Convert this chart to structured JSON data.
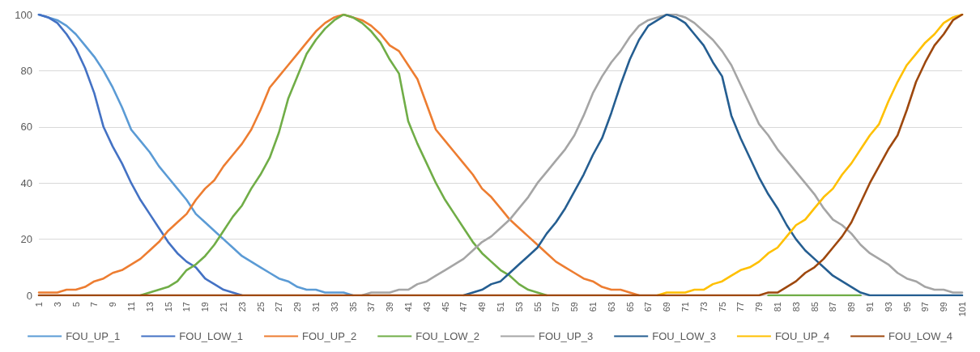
{
  "chart_data": {
    "type": "line",
    "categories": [
      "1",
      null,
      "3",
      null,
      "5",
      null,
      "7",
      null,
      "9",
      null,
      "11",
      null,
      "13",
      null,
      "15",
      null,
      "17",
      null,
      "19",
      null,
      "21",
      null,
      "23",
      null,
      "25",
      null,
      "27",
      null,
      "29",
      null,
      "31",
      null,
      "33",
      null,
      "35",
      null,
      "37",
      null,
      "39",
      null,
      "41",
      null,
      "43",
      null,
      "45",
      null,
      "47",
      null,
      "49",
      null,
      "51",
      null,
      "53",
      null,
      "55",
      null,
      "57",
      null,
      "59",
      null,
      "61",
      null,
      "63",
      null,
      "65",
      null,
      "67",
      null,
      "69",
      null,
      "71",
      null,
      "73",
      null,
      "75",
      null,
      "77",
      null,
      "79",
      null,
      "81",
      null,
      "83",
      null,
      "85",
      null,
      "87",
      null,
      "89",
      null,
      "91",
      null,
      "93",
      null,
      "95",
      null,
      "97",
      null,
      "99",
      null,
      "101"
    ],
    "series": [
      {
        "name": "FOU_UP_1",
        "color": "#5b9bd5",
        "values": [
          100,
          99,
          98,
          96,
          93,
          89,
          85,
          80,
          74,
          67,
          59,
          55,
          51,
          46,
          42,
          38,
          34,
          29,
          26,
          23,
          20,
          17,
          14,
          12,
          10,
          8,
          6,
          5,
          3,
          2,
          2,
          1,
          1,
          1,
          0,
          null,
          null,
          null,
          null,
          null,
          null,
          null,
          null,
          null,
          null,
          null,
          null,
          null,
          null,
          null,
          null,
          null,
          null,
          null,
          null,
          null,
          null,
          null,
          null,
          null,
          null,
          null,
          null,
          null,
          null,
          null,
          null,
          null,
          null,
          null,
          null,
          null,
          null,
          null,
          null,
          null,
          null,
          null,
          null,
          null,
          null,
          null,
          null,
          null,
          null,
          null,
          null,
          null,
          null,
          null,
          null,
          null,
          null,
          null,
          null,
          null,
          null,
          null,
          null,
          null,
          null
        ]
      },
      {
        "name": "FOU_LOW_1",
        "color": "#4472c4",
        "values": [
          100,
          99,
          97,
          93,
          88,
          81,
          72,
          60,
          53,
          47,
          40,
          34,
          29,
          24,
          19,
          15,
          12,
          10,
          6,
          4,
          2,
          1,
          0,
          null,
          null,
          null,
          null,
          null,
          null,
          null,
          null,
          null,
          null,
          null,
          null,
          null,
          null,
          null,
          null,
          null,
          null,
          null,
          null,
          null,
          null,
          null,
          null,
          null,
          null,
          null,
          null,
          null,
          null,
          null,
          null,
          null,
          null,
          null,
          null,
          null,
          null,
          null,
          null,
          null,
          null,
          null,
          null,
          null,
          null,
          null,
          null,
          null,
          null,
          null,
          null,
          null,
          null,
          null,
          null,
          null,
          null,
          null,
          null,
          null,
          null,
          null,
          null,
          null,
          null,
          null,
          null,
          null,
          null,
          null,
          null,
          null,
          null,
          null,
          null,
          null,
          null
        ]
      },
      {
        "name": "FOU_UP_2",
        "color": "#ed7d31",
        "values": [
          1,
          1,
          1,
          2,
          2,
          3,
          5,
          6,
          8,
          9,
          11,
          13,
          16,
          19,
          23,
          26,
          29,
          34,
          38,
          41,
          46,
          50,
          54,
          59,
          66,
          74,
          78,
          82,
          86,
          90,
          94,
          97,
          99,
          100,
          99,
          98,
          96,
          93,
          89,
          87,
          82,
          77,
          68,
          59,
          55,
          51,
          47,
          43,
          38,
          35,
          31,
          27,
          24,
          21,
          18,
          15,
          12,
          10,
          8,
          6,
          5,
          3,
          2,
          2,
          1,
          0,
          null,
          null,
          null,
          null,
          null,
          null,
          null,
          null,
          null,
          null,
          null,
          null,
          null,
          null,
          null,
          null,
          null,
          null,
          null,
          null,
          null,
          null,
          null,
          null,
          null,
          null,
          null,
          null,
          null,
          null,
          null,
          null,
          null,
          null,
          null
        ]
      },
      {
        "name": "FOU_LOW_2",
        "color": "#70ad47",
        "values": [
          null,
          null,
          null,
          null,
          null,
          null,
          null,
          null,
          null,
          null,
          null,
          0,
          1,
          2,
          3,
          5,
          9,
          11,
          14,
          18,
          23,
          28,
          32,
          38,
          43,
          49,
          58,
          70,
          78,
          86,
          91,
          95,
          98,
          100,
          99,
          97,
          94,
          90,
          84,
          79,
          62,
          54,
          47,
          40,
          34,
          29,
          24,
          19,
          15,
          12,
          9,
          7,
          4,
          2,
          1,
          0,
          null,
          null,
          null,
          null,
          null,
          null,
          null,
          null,
          null,
          null,
          null,
          null,
          null,
          null,
          null,
          null,
          null,
          null,
          null,
          null,
          null,
          null,
          null,
          0,
          0,
          0,
          0,
          0,
          0,
          0,
          0,
          0,
          0,
          0,
          null,
          null,
          null,
          null,
          null,
          null,
          null,
          null,
          null,
          null,
          null
        ]
      },
      {
        "name": "FOU_UP_3",
        "color": "#a5a5a5",
        "values": [
          null,
          null,
          null,
          null,
          null,
          null,
          null,
          null,
          null,
          null,
          null,
          null,
          null,
          null,
          null,
          null,
          null,
          null,
          null,
          null,
          null,
          null,
          null,
          null,
          null,
          null,
          null,
          null,
          null,
          null,
          null,
          null,
          null,
          null,
          null,
          0,
          1,
          1,
          1,
          2,
          2,
          4,
          5,
          7,
          9,
          11,
          13,
          16,
          19,
          21,
          24,
          27,
          31,
          35,
          40,
          44,
          48,
          52,
          57,
          64,
          72,
          78,
          83,
          87,
          92,
          96,
          98,
          99,
          100,
          100,
          99,
          97,
          94,
          91,
          87,
          82,
          75,
          68,
          61,
          57,
          52,
          48,
          44,
          40,
          36,
          31,
          27,
          25,
          22,
          18,
          15,
          13,
          11,
          8,
          6,
          5,
          3,
          2,
          2,
          1,
          1
        ]
      },
      {
        "name": "FOU_LOW_3",
        "color": "#255e91",
        "values": [
          null,
          null,
          null,
          null,
          null,
          null,
          null,
          null,
          null,
          null,
          null,
          null,
          null,
          null,
          null,
          null,
          null,
          null,
          null,
          null,
          null,
          null,
          null,
          null,
          null,
          null,
          null,
          null,
          null,
          null,
          null,
          null,
          null,
          null,
          null,
          null,
          null,
          null,
          null,
          null,
          null,
          null,
          null,
          null,
          null,
          null,
          0,
          1,
          2,
          4,
          5,
          8,
          11,
          14,
          17,
          22,
          26,
          31,
          37,
          43,
          50,
          56,
          65,
          75,
          84,
          91,
          96,
          98,
          100,
          99,
          97,
          93,
          89,
          83,
          78,
          64,
          56,
          49,
          42,
          36,
          31,
          25,
          20,
          16,
          13,
          10,
          7,
          5,
          3,
          1,
          0,
          0,
          0,
          0,
          0,
          0,
          0,
          0,
          0,
          0,
          0
        ]
      },
      {
        "name": "FOU_UP_4",
        "color": "#ffc000",
        "values": [
          null,
          null,
          null,
          null,
          null,
          null,
          null,
          null,
          null,
          null,
          null,
          null,
          null,
          null,
          null,
          null,
          null,
          null,
          null,
          null,
          null,
          null,
          null,
          null,
          null,
          null,
          null,
          null,
          null,
          null,
          null,
          null,
          null,
          null,
          null,
          null,
          null,
          null,
          null,
          null,
          null,
          null,
          null,
          null,
          null,
          null,
          null,
          null,
          null,
          null,
          null,
          null,
          null,
          null,
          null,
          null,
          null,
          null,
          null,
          null,
          null,
          null,
          null,
          null,
          null,
          null,
          null,
          0,
          1,
          1,
          1,
          2,
          2,
          4,
          5,
          7,
          9,
          10,
          12,
          15,
          17,
          21,
          25,
          27,
          31,
          35,
          38,
          43,
          47,
          52,
          57,
          61,
          69,
          76,
          82,
          86,
          90,
          93,
          97,
          99,
          100
        ]
      },
      {
        "name": "FOU_LOW_4",
        "color": "#9e480e",
        "values": [
          0,
          0,
          0,
          0,
          0,
          0,
          0,
          0,
          0,
          0,
          0,
          0,
          0,
          0,
          0,
          0,
          0,
          0,
          0,
          0,
          0,
          0,
          0,
          0,
          0,
          0,
          0,
          0,
          0,
          0,
          0,
          0,
          0,
          0,
          0,
          0,
          0,
          0,
          0,
          0,
          0,
          0,
          0,
          0,
          0,
          0,
          0,
          0,
          0,
          0,
          0,
          0,
          0,
          0,
          0,
          0,
          0,
          0,
          0,
          0,
          0,
          0,
          0,
          0,
          0,
          0,
          0,
          0,
          0,
          0,
          0,
          0,
          0,
          0,
          0,
          0,
          0,
          0,
          0,
          1,
          1,
          3,
          5,
          8,
          10,
          13,
          17,
          21,
          26,
          33,
          40,
          46,
          52,
          57,
          66,
          76,
          83,
          89,
          93,
          98,
          100
        ]
      }
    ],
    "ylim": [
      0,
      100
    ],
    "yticks": [
      0,
      20,
      40,
      60,
      80,
      100
    ],
    "grid": "y",
    "legend": "bottom",
    "marker": "none",
    "line_style": "solid"
  }
}
